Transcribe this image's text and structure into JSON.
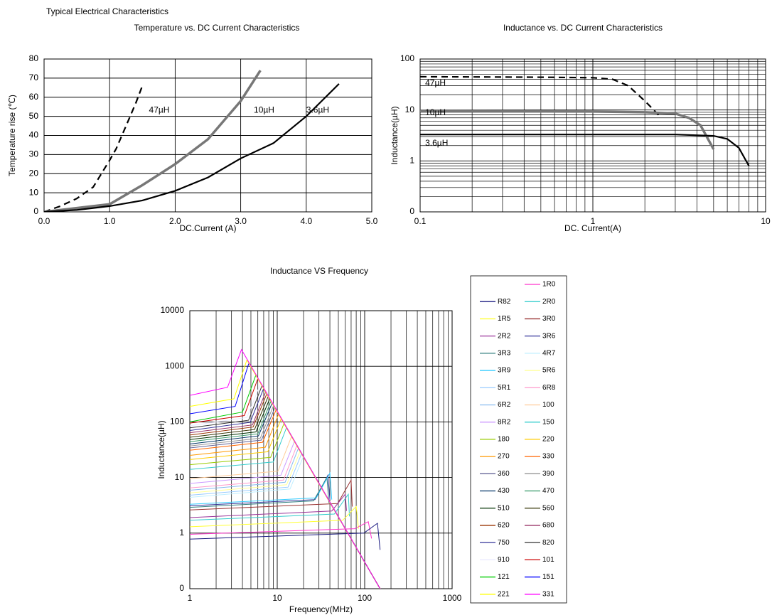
{
  "header": "Typical Electrical Characteristics",
  "chart_data": [
    {
      "type": "line",
      "title": "Temperature vs. DC Current Characteristics",
      "x_label": "DC.Current (A)",
      "y_label": "Temperature rise (℃)",
      "xlim": [
        0,
        5
      ],
      "xticks": [
        {
          "value": 0,
          "label": "0.0"
        },
        {
          "value": 1,
          "label": "1.0"
        },
        {
          "value": 2,
          "label": "2.0"
        },
        {
          "value": 3,
          "label": "3.0"
        },
        {
          "value": 4,
          "label": "4.0"
        },
        {
          "value": 5,
          "label": "5.0"
        }
      ],
      "ylim": [
        0,
        80
      ],
      "yticks": [
        0,
        10,
        20,
        30,
        40,
        50,
        60,
        70,
        80
      ],
      "grid": true,
      "legend": "inline",
      "series": [
        {
          "name": "47µH",
          "color": "#000000",
          "line_style": "dashed",
          "x": [
            0,
            0.25,
            0.5,
            0.75,
            1.0,
            1.1,
            1.25,
            1.4,
            1.5
          ],
          "values": [
            0,
            3,
            7,
            13,
            27,
            33,
            45,
            57,
            66
          ]
        },
        {
          "name": "10µH",
          "color": "#777777",
          "line_style": "solid",
          "x": [
            0,
            0.5,
            1.0,
            1.5,
            2.0,
            2.5,
            3.0,
            3.3
          ],
          "values": [
            0,
            2,
            4,
            14,
            25,
            38,
            58,
            74
          ]
        },
        {
          "name": "3.6µH",
          "color": "#000000",
          "line_style": "solid",
          "x": [
            0,
            0.5,
            1.0,
            1.5,
            2.0,
            2.5,
            3.0,
            3.5,
            4.0,
            4.5
          ],
          "values": [
            0,
            1,
            3,
            6,
            11,
            18,
            28,
            36,
            50,
            67
          ]
        }
      ]
    },
    {
      "type": "line",
      "title": "Inductance vs. DC Current Characteristics",
      "x_label": "DC. Current(A)",
      "y_label": "Inductance(µH)",
      "xscale": "log",
      "yscale": "log",
      "xlim": [
        0.1,
        10
      ],
      "xticks": [
        0.1,
        1,
        10
      ],
      "ylim": [
        0.1,
        100
      ],
      "yticks": [
        {
          "value": 0.1,
          "label": "0"
        },
        1,
        10,
        100
      ],
      "grid": true,
      "minor_grid": "both",
      "legend": "inline",
      "series": [
        {
          "name": "47µH",
          "color": "#000000",
          "line_style": "dashed",
          "x": [
            0.1,
            0.5,
            1,
            1.3,
            1.6,
            2,
            2.4
          ],
          "values": [
            45,
            44,
            43,
            40,
            30,
            15,
            8
          ]
        },
        {
          "name": "10µH",
          "color": "#777777",
          "line_style": "solid",
          "x": [
            0.1,
            1,
            2,
            3,
            3.6,
            4.2,
            5
          ],
          "values": [
            9.5,
            9.3,
            9,
            8.5,
            7,
            5,
            1.7
          ]
        },
        {
          "name": "3.6µH",
          "color": "#000000",
          "line_style": "solid",
          "x": [
            0.1,
            1,
            3,
            5,
            6,
            7,
            8
          ],
          "values": [
            3.3,
            3.3,
            3.3,
            3.1,
            2.7,
            1.8,
            0.8
          ]
        }
      ]
    },
    {
      "type": "line",
      "title": "Inductance VS Frequency",
      "x_label": "Frequency(MHz)",
      "y_label": "Inductance(µH)",
      "xscale": "log",
      "yscale": "log",
      "xlim": [
        1,
        1000
      ],
      "xticks": [
        1,
        10,
        100,
        1000
      ],
      "ylim": [
        0.1,
        10000
      ],
      "yticks": [
        {
          "value": 0.1,
          "label": "0"
        },
        1,
        10,
        100,
        1000,
        10000
      ],
      "grid": true,
      "minor_grid": "x",
      "legend": "right",
      "series": [
        {
          "name": "1R0",
          "color": "#ff33cc",
          "x": [
            1,
            77,
            110,
            120
          ],
          "values": [
            0.95,
            1.2,
            1.6,
            0.8
          ]
        },
        {
          "name": "R82",
          "color": "#1a1a80",
          "x": [
            1,
            98,
            140,
            150
          ],
          "values": [
            0.78,
            1.0,
            1.5,
            0.5
          ]
        },
        {
          "name": "2R0",
          "color": "#33cccc",
          "x": [
            1,
            45,
            65,
            67
          ],
          "values": [
            1.7,
            2.2,
            5,
            2
          ]
        },
        {
          "name": "1R5",
          "color": "#ffff33",
          "x": [
            1,
            56,
            80,
            85
          ],
          "values": [
            1.3,
            1.7,
            3,
            1.2
          ]
        },
        {
          "name": "3R0",
          "color": "#993333",
          "x": [
            1,
            49,
            70,
            72
          ],
          "values": [
            2.6,
            3.4,
            9,
            3
          ]
        },
        {
          "name": "2R2",
          "color": "#993399",
          "x": [
            1,
            42,
            60,
            62
          ],
          "values": [
            1.9,
            2.5,
            5,
            2.5
          ]
        },
        {
          "name": "3R6",
          "color": "#333399",
          "x": [
            1,
            27,
            38,
            40
          ],
          "values": [
            3.1,
            4,
            11,
            4
          ]
        },
        {
          "name": "3R3",
          "color": "#338080",
          "x": [
            1,
            26,
            37,
            39
          ],
          "values": [
            2.9,
            3.8,
            10,
            3.5
          ]
        },
        {
          "name": "4R7",
          "color": "#bfefff",
          "x": [
            1,
            14,
            19.9,
            150
          ],
          "values": [
            4.4,
            6.2,
            24,
            0.1
          ]
        },
        {
          "name": "3R9",
          "color": "#33ccff",
          "x": [
            1,
            28,
            40,
            42
          ],
          "values": [
            3.3,
            4.3,
            12,
            4
          ]
        },
        {
          "name": "5R6",
          "color": "#ffff99",
          "x": [
            1,
            12.8,
            18.3,
            150
          ],
          "values": [
            5.3,
            7.4,
            30,
            0.1
          ]
        },
        {
          "name": "5R1",
          "color": "#99ccff",
          "x": [
            1,
            13.3,
            19,
            150
          ],
          "values": [
            4.8,
            6.7,
            27,
            0.1
          ]
        },
        {
          "name": "6R8",
          "color": "#ff99cc",
          "x": [
            1,
            11.8,
            16.8,
            150
          ],
          "values": [
            6.5,
            9,
            38,
            0.1
          ]
        },
        {
          "name": "6R2",
          "color": "#88bbee",
          "x": [
            1,
            12.3,
            17.5,
            150
          ],
          "values": [
            5.9,
            8.2,
            34,
            0.1
          ]
        },
        {
          "name": "100",
          "color": "#ffcc99",
          "x": [
            1,
            10.2,
            14.6,
            150
          ],
          "values": [
            9.5,
            13,
            55,
            0.1
          ]
        },
        {
          "name": "8R2",
          "color": "#cc99ff",
          "x": [
            1,
            11,
            15.8,
            150
          ],
          "values": [
            7.8,
            11,
            45,
            0.1
          ]
        },
        {
          "name": "150",
          "color": "#33cccc",
          "x": [
            1,
            9,
            12.8,
            150
          ],
          "values": [
            14,
            19,
            80,
            0.1
          ]
        },
        {
          "name": "180",
          "color": "#99cc00",
          "x": [
            1,
            8.4,
            12,
            150
          ],
          "values": [
            17,
            23,
            95,
            0.1
          ]
        },
        {
          "name": "220",
          "color": "#ffcc00",
          "x": [
            1,
            7.8,
            11.1,
            150
          ],
          "values": [
            21,
            29,
            115,
            0.1
          ]
        },
        {
          "name": "270",
          "color": "#ff9900",
          "x": [
            1,
            7.3,
            10.4,
            150
          ],
          "values": [
            25,
            35,
            140,
            0.1
          ]
        },
        {
          "name": "330",
          "color": "#ff6600",
          "x": [
            1,
            6.8,
            9.7,
            150
          ],
          "values": [
            31,
            43,
            165,
            0.1
          ]
        },
        {
          "name": "360",
          "color": "#666699",
          "x": [
            1,
            6.6,
            9.4,
            150
          ],
          "values": [
            34,
            47,
            180,
            0.1
          ]
        },
        {
          "name": "390",
          "color": "#969696",
          "x": [
            1,
            6.4,
            9.1,
            150
          ],
          "values": [
            37,
            51,
            200,
            0.1
          ]
        },
        {
          "name": "430",
          "color": "#003366",
          "x": [
            1,
            6.1,
            8.75,
            150
          ],
          "values": [
            40,
            56,
            220,
            0.1
          ]
        },
        {
          "name": "470",
          "color": "#339966",
          "x": [
            1,
            6,
            8.5,
            150
          ],
          "values": [
            44,
            61,
            240,
            0.1
          ]
        },
        {
          "name": "510",
          "color": "#003300",
          "x": [
            1,
            5.7,
            8.2,
            150
          ],
          "values": [
            48,
            66,
            260,
            0.1
          ]
        },
        {
          "name": "560",
          "color": "#333300",
          "x": [
            1,
            5.5,
            7.9,
            150
          ],
          "values": [
            53,
            73,
            290,
            0.1
          ]
        },
        {
          "name": "620",
          "color": "#993300",
          "x": [
            1,
            5.3,
            7.6,
            150
          ],
          "values": [
            58,
            81,
            320,
            0.1
          ]
        },
        {
          "name": "680",
          "color": "#993366",
          "x": [
            1,
            5.2,
            7.4,
            150
          ],
          "values": [
            64,
            88,
            350,
            0.1
          ]
        },
        {
          "name": "750",
          "color": "#333399",
          "x": [
            1,
            4.9,
            7,
            150
          ],
          "values": [
            70,
            98,
            400,
            0.1
          ]
        },
        {
          "name": "820",
          "color": "#333333",
          "x": [
            1,
            4.7,
            6.7,
            150
          ],
          "values": [
            78,
            107,
            450,
            0.1
          ]
        },
        {
          "name": "910",
          "color": "#e8e8ff",
          "x": [
            1,
            4.5,
            6.5,
            150
          ],
          "values": [
            85,
            120,
            500,
            0.1
          ]
        },
        {
          "name": "101",
          "color": "#cc0000",
          "x": [
            1,
            4.2,
            6,
            150
          ],
          "values": [
            95,
            130,
            600,
            0.1
          ]
        },
        {
          "name": "121",
          "color": "#00cc00",
          "x": [
            1,
            4,
            5.7,
            150
          ],
          "values": [
            100,
            150,
            700,
            0.1
          ]
        },
        {
          "name": "151",
          "color": "#0000ff",
          "x": [
            1,
            3.3,
            4.75,
            150
          ],
          "values": [
            140,
            190,
            1150,
            0.1
          ]
        },
        {
          "name": "221",
          "color": "#ffff00",
          "x": [
            1,
            3.2,
            4.5,
            150
          ],
          "values": [
            190,
            260,
            1300,
            0.1
          ]
        },
        {
          "name": "331",
          "color": "#ff00ff",
          "x": [
            1,
            2.7,
            3.9,
            150
          ],
          "values": [
            300,
            420,
            2000,
            0.1
          ]
        }
      ]
    }
  ]
}
